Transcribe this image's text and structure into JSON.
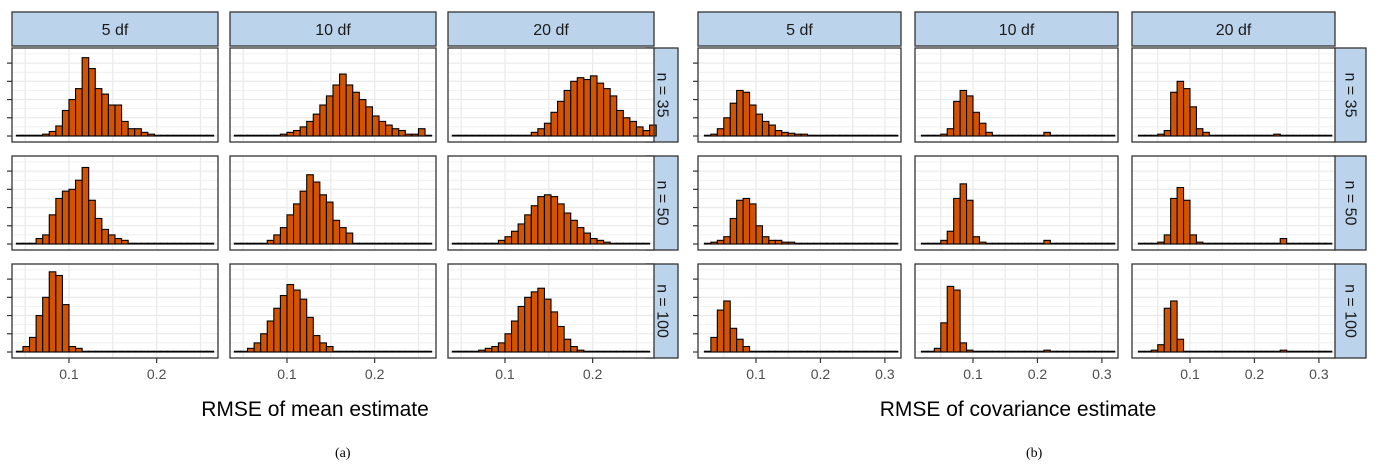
{
  "colors": {
    "bar": "#D35400",
    "strip": "#BCD3EC",
    "grid": "#EBEBEB"
  },
  "captions": [
    "(a)",
    "(b)"
  ],
  "chart_data": [
    {
      "type": "bar",
      "xlabel": "RMSE of mean estimate",
      "xlim": [
        0.035,
        0.27
      ],
      "xticks": [
        0.1,
        0.2
      ],
      "xtick_labels": [
        "0.1",
        "0.2"
      ],
      "col_labels": [
        "5 df",
        "10 df",
        "20 df"
      ],
      "row_labels": [
        "n = 35",
        "n = 50",
        "n = 100"
      ],
      "bin_start": 0.04,
      "bin_width": 0.0075,
      "panels": [
        [
          [
            0.4,
            0.4,
            0.4,
            0.4,
            1.0,
            2.5,
            5.5,
            14,
            20,
            26,
            43,
            37,
            26,
            23,
            17,
            17,
            8,
            4,
            4,
            2,
            1,
            0.4,
            0.4,
            0.4,
            0.4,
            0.4,
            0.4,
            0.4,
            0.4,
            0.4
          ],
          [
            0.4,
            0.4,
            0.4,
            0.4,
            0.4,
            0.4,
            0.4,
            1,
            2,
            3,
            5,
            8,
            12,
            17,
            22,
            28,
            34,
            28,
            24,
            20,
            16,
            11,
            8,
            6,
            4,
            3,
            1,
            1,
            4,
            0.4
          ],
          [
            0.4,
            0.4,
            0.4,
            0.4,
            0.4,
            0.4,
            0.4,
            0.4,
            0.4,
            0.4,
            0.4,
            0.4,
            2,
            4,
            7,
            13,
            19,
            25,
            30,
            32,
            31,
            33,
            29,
            26,
            22,
            14,
            10,
            8,
            5,
            3,
            6,
            0.4,
            0.4,
            0.4,
            0.4
          ]
        ],
        [
          [
            0.4,
            0.4,
            0.4,
            3,
            5,
            16,
            25,
            29,
            30,
            35,
            42,
            24,
            14,
            8,
            5,
            3,
            2,
            0.4,
            0.4,
            0.4,
            0.4,
            0.4,
            0.4,
            0.4,
            0.4,
            0.4,
            0.4,
            0.4,
            0.4,
            0.4
          ],
          [
            0.4,
            0.4,
            0.4,
            0.4,
            0.4,
            2,
            5,
            9,
            16,
            22,
            29,
            38,
            34,
            27,
            23,
            13,
            9,
            6,
            0.4,
            0.4,
            0.4,
            0.4,
            0.4,
            0.4,
            0.4,
            0.4,
            0.4,
            0.4,
            0.4,
            0.4
          ],
          [
            0.4,
            0.4,
            0.4,
            0.4,
            0.4,
            0.4,
            0.4,
            2,
            4,
            7,
            11,
            16,
            21,
            26,
            27,
            26,
            22,
            17,
            13,
            9,
            6,
            3,
            2,
            1,
            0.4,
            0.4,
            0.4,
            0.4,
            0.4,
            0.4
          ]
        ],
        [
          [
            0.4,
            3,
            8,
            20,
            30,
            44,
            42,
            26,
            3,
            2,
            0.4,
            0.4,
            0.4,
            0.4,
            0.4,
            0.4,
            0.4,
            0.4,
            0.4,
            0.4,
            0.4,
            0.4,
            0.4,
            0.4,
            0.4,
            0.4,
            0.4,
            0.4,
            0.4,
            0.4
          ],
          [
            0.4,
            0.4,
            2,
            5,
            10,
            17,
            24,
            31,
            37,
            34,
            29,
            19,
            9,
            5,
            3,
            0.4,
            0.4,
            0.4,
            0.4,
            0.4,
            0.4,
            0.4,
            0.4,
            0.4,
            0.4,
            0.4,
            0.4,
            0.4,
            0.4,
            0.4
          ],
          [
            0.4,
            0.4,
            0.4,
            0.4,
            1,
            2,
            3,
            5,
            10,
            17,
            25,
            30,
            33,
            35,
            29,
            22,
            14,
            7,
            3,
            1,
            0.4,
            0.4,
            0.4,
            0.4,
            0.4,
            0.4,
            0.4,
            0.4,
            0.4,
            0.4
          ]
        ]
      ]
    },
    {
      "type": "bar",
      "xlabel": "RMSE of covariance estimate",
      "xlim": [
        0.01,
        0.325
      ],
      "xticks": [
        0.1,
        0.2,
        0.3
      ],
      "xtick_labels": [
        "0.1",
        "0.2",
        "0.3"
      ],
      "col_labels": [
        "5 df",
        "10 df",
        "20 df"
      ],
      "row_labels": [
        "n = 35",
        "n = 50",
        "n = 100"
      ],
      "bin_start": 0.02,
      "bin_width": 0.01,
      "panels": [
        [
          [
            0.4,
            1,
            4,
            10,
            18,
            25,
            24,
            17,
            12,
            8,
            6,
            3,
            2,
            1.5,
            1,
            1,
            0.4,
            0.4,
            0.4,
            0.4,
            0.4,
            0.4,
            0.4,
            0.4,
            0.4,
            0.4,
            0.4,
            0.4,
            0.4,
            0.4
          ],
          [
            0.4,
            0.4,
            0.4,
            1,
            4,
            19,
            25,
            22,
            13,
            7,
            2,
            0.4,
            0.4,
            0.4,
            0.4,
            0.4,
            0.4,
            0.4,
            0.4,
            2,
            0.4,
            0.4,
            0.4,
            0.4,
            0.4,
            0.4,
            0.4,
            0.4,
            0.4,
            0.4
          ],
          [
            0.4,
            0.4,
            0.4,
            1,
            3,
            24,
            30,
            26,
            16,
            4,
            2,
            0.4,
            0.4,
            0.4,
            0.4,
            0.4,
            0.4,
            0.4,
            0.4,
            0.4,
            0.4,
            1,
            0.4,
            0.4,
            0.4,
            0.4,
            0.4,
            0.4,
            0.4,
            0.4
          ]
        ],
        [
          [
            0.4,
            1,
            2,
            4,
            14,
            24,
            25,
            22,
            10,
            4,
            2,
            2,
            1,
            1,
            0.4,
            0.4,
            0.4,
            0.4,
            0.4,
            0.4,
            0.4,
            0.4,
            0.4,
            0.4,
            0.4,
            0.4,
            0.4,
            0.4,
            0.4,
            0.4
          ],
          [
            0.4,
            0.4,
            0.4,
            2,
            7,
            25,
            33,
            24,
            4,
            1,
            0.4,
            0.4,
            0.4,
            0.4,
            0.4,
            0.4,
            0.4,
            0.4,
            0.4,
            2,
            0.4,
            0.4,
            0.4,
            0.4,
            0.4,
            0.4,
            0.4,
            0.4,
            0.4,
            0.4
          ],
          [
            0.4,
            0.4,
            0.4,
            1,
            5,
            25,
            31,
            24,
            5,
            1,
            0.4,
            0.4,
            0.4,
            0.4,
            0.4,
            0.4,
            0.4,
            0.4,
            0.4,
            0.4,
            0.4,
            0.4,
            3,
            0.4,
            0.4,
            0.4,
            0.4,
            0.4,
            0.4,
            0.4
          ]
        ],
        [
          [
            0.4,
            8,
            23,
            28,
            13,
            7,
            3,
            0.4,
            0.4,
            0.4,
            0.4,
            0.4,
            0.4,
            0.4,
            0.4,
            0.4,
            0.4,
            0.4,
            0.4,
            0.4,
            0.4,
            0.4,
            0.4,
            0.4,
            0.4,
            0.4,
            0.4,
            0.4,
            0.4,
            0.4
          ],
          [
            0.4,
            0.4,
            2,
            16,
            36,
            34,
            5,
            1,
            0.4,
            0.4,
            0.4,
            0.4,
            0.4,
            0.4,
            0.4,
            0.4,
            0.4,
            0.4,
            0.4,
            1,
            0.4,
            0.4,
            0.4,
            0.4,
            0.4,
            0.4,
            0.4,
            0.4,
            0.4,
            0.4
          ],
          [
            0.4,
            0.4,
            1,
            4,
            24,
            28,
            7,
            0.4,
            0.4,
            0.4,
            0.4,
            0.4,
            0.4,
            0.4,
            0.4,
            0.4,
            0.4,
            0.4,
            0.4,
            0.4,
            0.4,
            0.4,
            1,
            0.4,
            0.4,
            0.4,
            0.4,
            0.4,
            0.4,
            0.4
          ]
        ]
      ]
    }
  ]
}
